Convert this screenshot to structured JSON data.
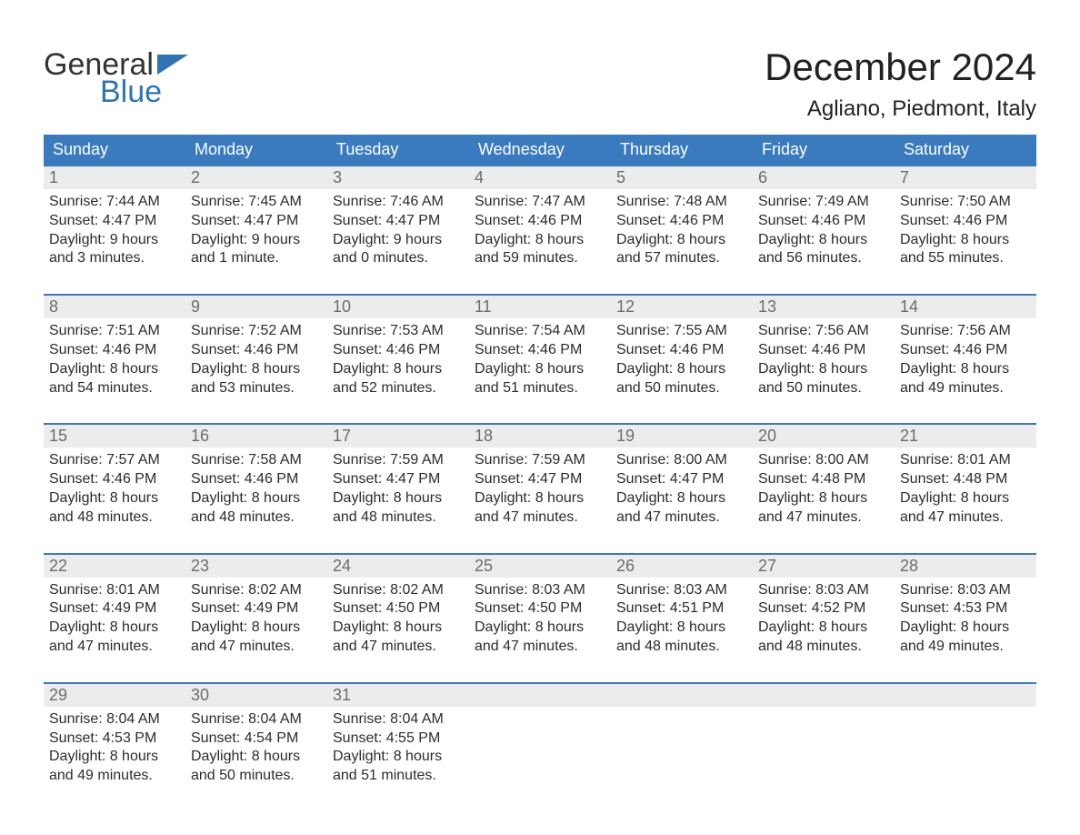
{
  "brand": {
    "word1": "General",
    "word2": "Blue",
    "word2_color": "#2e74b5",
    "flag_color": "#2e74b5"
  },
  "header": {
    "month_title": "December 2024",
    "location": "Agliano, Piedmont, Italy"
  },
  "styling": {
    "dow_bg": "#3a7bbf",
    "dow_text": "#ffffff",
    "week_rule_color": "#3a7bbf",
    "daynum_bg": "#ececec",
    "daynum_text": "#6c6c6c",
    "body_text": "#2c2c2c",
    "page_bg": "#ffffff",
    "font_family": "Helvetica Neue, Helvetica, Arial, sans-serif",
    "title_fontsize": 42,
    "location_fontsize": 24,
    "dow_fontsize": 18,
    "daynum_fontsize": 18,
    "body_fontsize": 16
  },
  "days_of_week": [
    "Sunday",
    "Monday",
    "Tuesday",
    "Wednesday",
    "Thursday",
    "Friday",
    "Saturday"
  ],
  "weeks": [
    [
      {
        "n": "1",
        "sunrise": "Sunrise: 7:44 AM",
        "sunset": "Sunset: 4:47 PM",
        "daylight1": "Daylight: 9 hours",
        "daylight2": "and 3 minutes."
      },
      {
        "n": "2",
        "sunrise": "Sunrise: 7:45 AM",
        "sunset": "Sunset: 4:47 PM",
        "daylight1": "Daylight: 9 hours",
        "daylight2": "and 1 minute."
      },
      {
        "n": "3",
        "sunrise": "Sunrise: 7:46 AM",
        "sunset": "Sunset: 4:47 PM",
        "daylight1": "Daylight: 9 hours",
        "daylight2": "and 0 minutes."
      },
      {
        "n": "4",
        "sunrise": "Sunrise: 7:47 AM",
        "sunset": "Sunset: 4:46 PM",
        "daylight1": "Daylight: 8 hours",
        "daylight2": "and 59 minutes."
      },
      {
        "n": "5",
        "sunrise": "Sunrise: 7:48 AM",
        "sunset": "Sunset: 4:46 PM",
        "daylight1": "Daylight: 8 hours",
        "daylight2": "and 57 minutes."
      },
      {
        "n": "6",
        "sunrise": "Sunrise: 7:49 AM",
        "sunset": "Sunset: 4:46 PM",
        "daylight1": "Daylight: 8 hours",
        "daylight2": "and 56 minutes."
      },
      {
        "n": "7",
        "sunrise": "Sunrise: 7:50 AM",
        "sunset": "Sunset: 4:46 PM",
        "daylight1": "Daylight: 8 hours",
        "daylight2": "and 55 minutes."
      }
    ],
    [
      {
        "n": "8",
        "sunrise": "Sunrise: 7:51 AM",
        "sunset": "Sunset: 4:46 PM",
        "daylight1": "Daylight: 8 hours",
        "daylight2": "and 54 minutes."
      },
      {
        "n": "9",
        "sunrise": "Sunrise: 7:52 AM",
        "sunset": "Sunset: 4:46 PM",
        "daylight1": "Daylight: 8 hours",
        "daylight2": "and 53 minutes."
      },
      {
        "n": "10",
        "sunrise": "Sunrise: 7:53 AM",
        "sunset": "Sunset: 4:46 PM",
        "daylight1": "Daylight: 8 hours",
        "daylight2": "and 52 minutes."
      },
      {
        "n": "11",
        "sunrise": "Sunrise: 7:54 AM",
        "sunset": "Sunset: 4:46 PM",
        "daylight1": "Daylight: 8 hours",
        "daylight2": "and 51 minutes."
      },
      {
        "n": "12",
        "sunrise": "Sunrise: 7:55 AM",
        "sunset": "Sunset: 4:46 PM",
        "daylight1": "Daylight: 8 hours",
        "daylight2": "and 50 minutes."
      },
      {
        "n": "13",
        "sunrise": "Sunrise: 7:56 AM",
        "sunset": "Sunset: 4:46 PM",
        "daylight1": "Daylight: 8 hours",
        "daylight2": "and 50 minutes."
      },
      {
        "n": "14",
        "sunrise": "Sunrise: 7:56 AM",
        "sunset": "Sunset: 4:46 PM",
        "daylight1": "Daylight: 8 hours",
        "daylight2": "and 49 minutes."
      }
    ],
    [
      {
        "n": "15",
        "sunrise": "Sunrise: 7:57 AM",
        "sunset": "Sunset: 4:46 PM",
        "daylight1": "Daylight: 8 hours",
        "daylight2": "and 48 minutes."
      },
      {
        "n": "16",
        "sunrise": "Sunrise: 7:58 AM",
        "sunset": "Sunset: 4:46 PM",
        "daylight1": "Daylight: 8 hours",
        "daylight2": "and 48 minutes."
      },
      {
        "n": "17",
        "sunrise": "Sunrise: 7:59 AM",
        "sunset": "Sunset: 4:47 PM",
        "daylight1": "Daylight: 8 hours",
        "daylight2": "and 48 minutes."
      },
      {
        "n": "18",
        "sunrise": "Sunrise: 7:59 AM",
        "sunset": "Sunset: 4:47 PM",
        "daylight1": "Daylight: 8 hours",
        "daylight2": "and 47 minutes."
      },
      {
        "n": "19",
        "sunrise": "Sunrise: 8:00 AM",
        "sunset": "Sunset: 4:47 PM",
        "daylight1": "Daylight: 8 hours",
        "daylight2": "and 47 minutes."
      },
      {
        "n": "20",
        "sunrise": "Sunrise: 8:00 AM",
        "sunset": "Sunset: 4:48 PM",
        "daylight1": "Daylight: 8 hours",
        "daylight2": "and 47 minutes."
      },
      {
        "n": "21",
        "sunrise": "Sunrise: 8:01 AM",
        "sunset": "Sunset: 4:48 PM",
        "daylight1": "Daylight: 8 hours",
        "daylight2": "and 47 minutes."
      }
    ],
    [
      {
        "n": "22",
        "sunrise": "Sunrise: 8:01 AM",
        "sunset": "Sunset: 4:49 PM",
        "daylight1": "Daylight: 8 hours",
        "daylight2": "and 47 minutes."
      },
      {
        "n": "23",
        "sunrise": "Sunrise: 8:02 AM",
        "sunset": "Sunset: 4:49 PM",
        "daylight1": "Daylight: 8 hours",
        "daylight2": "and 47 minutes."
      },
      {
        "n": "24",
        "sunrise": "Sunrise: 8:02 AM",
        "sunset": "Sunset: 4:50 PM",
        "daylight1": "Daylight: 8 hours",
        "daylight2": "and 47 minutes."
      },
      {
        "n": "25",
        "sunrise": "Sunrise: 8:03 AM",
        "sunset": "Sunset: 4:50 PM",
        "daylight1": "Daylight: 8 hours",
        "daylight2": "and 47 minutes."
      },
      {
        "n": "26",
        "sunrise": "Sunrise: 8:03 AM",
        "sunset": "Sunset: 4:51 PM",
        "daylight1": "Daylight: 8 hours",
        "daylight2": "and 48 minutes."
      },
      {
        "n": "27",
        "sunrise": "Sunrise: 8:03 AM",
        "sunset": "Sunset: 4:52 PM",
        "daylight1": "Daylight: 8 hours",
        "daylight2": "and 48 minutes."
      },
      {
        "n": "28",
        "sunrise": "Sunrise: 8:03 AM",
        "sunset": "Sunset: 4:53 PM",
        "daylight1": "Daylight: 8 hours",
        "daylight2": "and 49 minutes."
      }
    ],
    [
      {
        "n": "29",
        "sunrise": "Sunrise: 8:04 AM",
        "sunset": "Sunset: 4:53 PM",
        "daylight1": "Daylight: 8 hours",
        "daylight2": "and 49 minutes."
      },
      {
        "n": "30",
        "sunrise": "Sunrise: 8:04 AM",
        "sunset": "Sunset: 4:54 PM",
        "daylight1": "Daylight: 8 hours",
        "daylight2": "and 50 minutes."
      },
      {
        "n": "31",
        "sunrise": "Sunrise: 8:04 AM",
        "sunset": "Sunset: 4:55 PM",
        "daylight1": "Daylight: 8 hours",
        "daylight2": "and 51 minutes."
      },
      null,
      null,
      null,
      null
    ]
  ]
}
